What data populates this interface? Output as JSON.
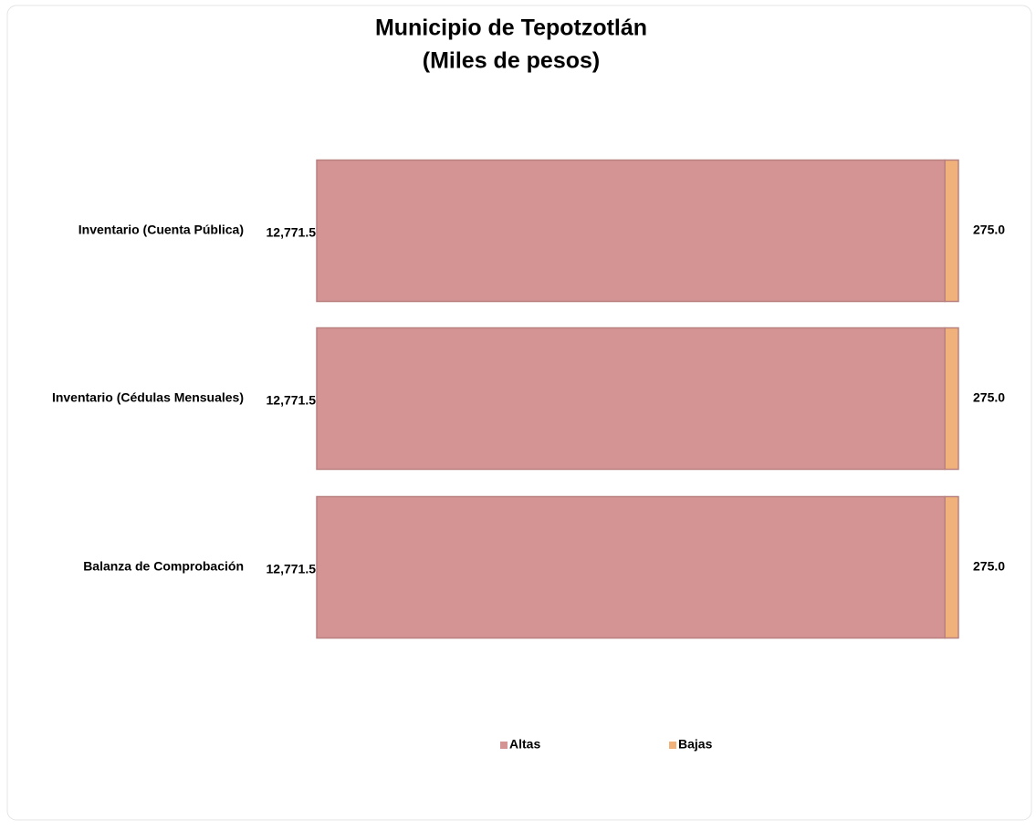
{
  "chart_data": {
    "type": "stacked-bar-horizontal",
    "title": "Municipio de Tepotzotlán",
    "subtitle": "(Miles de pesos)",
    "categories": [
      "Inventario (Cuenta Pública)",
      "Inventario (Cédulas Mensuales)",
      "Balanza de Comprobación"
    ],
    "series": [
      {
        "name": "Altas",
        "color": "#d49494",
        "values": [
          12771.5,
          12771.5,
          12771.5
        ],
        "value_labels": [
          "12,771.5",
          "12,771.5",
          "12,771.5"
        ]
      },
      {
        "name": "Bajas",
        "color": "#f0b27a",
        "values": [
          275.0,
          275.0,
          275.0
        ],
        "value_labels": [
          "275.0",
          "275.0",
          "275.0"
        ]
      }
    ],
    "legend": "bottom"
  }
}
